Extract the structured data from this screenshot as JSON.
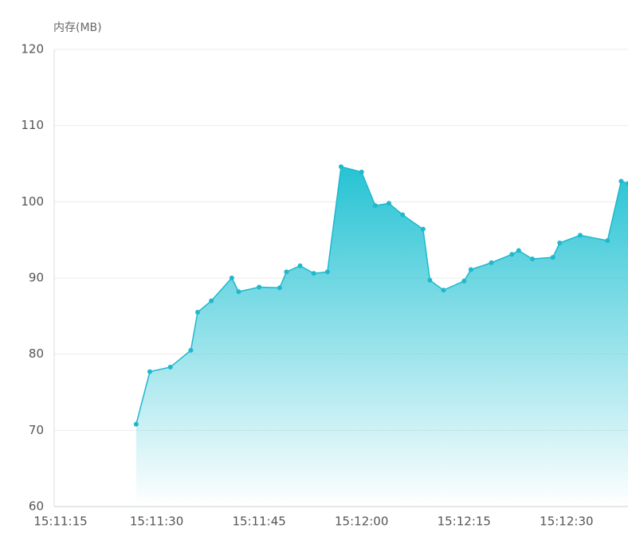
{
  "chart_data": {
    "type": "area",
    "y_axis_label": "内存(MB)",
    "x": [
      "15:11:27",
      "15:11:29",
      "15:11:32",
      "15:11:35",
      "15:11:36",
      "15:11:38",
      "15:11:41",
      "15:11:42",
      "15:11:45",
      "15:11:48",
      "15:11:49",
      "15:11:51",
      "15:11:53",
      "15:11:55",
      "15:11:57",
      "15:12:00",
      "15:12:02",
      "15:12:04",
      "15:12:06",
      "15:12:09",
      "15:12:10",
      "15:12:12",
      "15:12:15",
      "15:12:16",
      "15:12:19",
      "15:12:22",
      "15:12:23",
      "15:12:25",
      "15:12:28",
      "15:12:29",
      "15:12:32",
      "15:12:36",
      "15:12:38",
      "15:12:39"
    ],
    "series": [
      {
        "name": "内存",
        "color": "#1fb8cc",
        "values": [
          70.8,
          77.7,
          78.3,
          80.5,
          85.5,
          87.0,
          90.0,
          88.2,
          88.8,
          88.7,
          90.8,
          91.6,
          90.6,
          90.8,
          104.6,
          103.9,
          99.5,
          99.8,
          98.3,
          96.4,
          89.7,
          88.4,
          89.6,
          91.1,
          92.0,
          93.1,
          93.6,
          92.5,
          92.7,
          94.6,
          95.6,
          94.9,
          102.7,
          102.4
        ]
      }
    ],
    "xlim": [
      "15:11:15",
      "15:12:39"
    ],
    "xticks": [
      "15:11:15",
      "15:11:30",
      "15:11:45",
      "15:12:00",
      "15:12:15",
      "15:12:30"
    ],
    "ylim": [
      60,
      120
    ],
    "yticks": [
      60,
      70,
      80,
      90,
      100,
      110,
      120
    ],
    "grid": true
  }
}
